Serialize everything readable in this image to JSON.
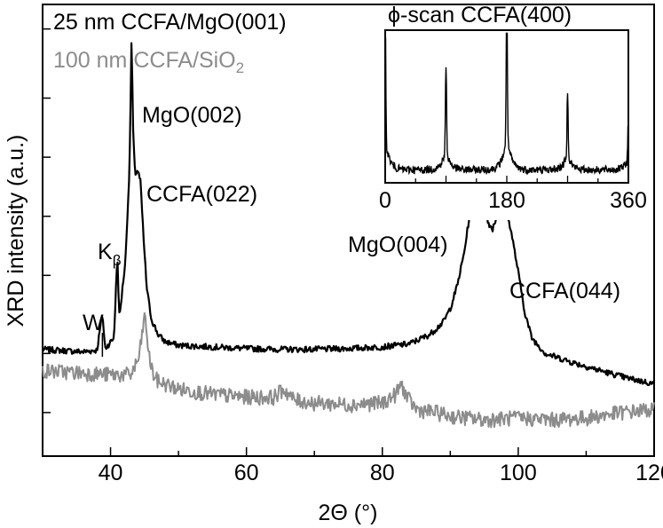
{
  "chart_data": {
    "type": "line",
    "xlabel": "2Θ (°)",
    "ylabel": "XRD intensity (a.u.)",
    "xlim": [
      30,
      120
    ],
    "x_ticks": [
      40,
      60,
      80,
      100,
      120
    ],
    "y_scale": "log",
    "y_tick_labels": "none",
    "grid": false,
    "legend": [
      {
        "label": "25 nm CCFA/MgO(001)",
        "color": "#000000"
      },
      {
        "label": "100 nm CCFA/SiO",
        "sub": "2",
        "color": "#8c8c8c"
      }
    ],
    "series": [
      {
        "name": "25 nm CCFA/MgO(001)",
        "color": "#000000",
        "x": [
          30,
          34,
          36,
          38,
          38.8,
          39.2,
          40.5,
          41.0,
          41.3,
          41.6,
          42.2,
          42.8,
          43.1,
          43.3,
          43.6,
          44.0,
          44.4,
          44.8,
          45.3,
          46,
          47,
          48,
          50,
          55,
          60,
          65,
          70,
          75,
          80,
          84,
          87,
          89,
          90,
          91,
          92,
          93,
          93.8,
          94.4,
          94.8,
          95.1,
          95.5,
          96.2,
          97.0,
          97.8,
          98.8,
          100,
          101,
          102,
          104,
          108,
          112,
          116,
          120
        ],
        "values": [
          1.05,
          1.03,
          1.02,
          1.04,
          1.6,
          1.06,
          1.2,
          3.2,
          1.5,
          1.9,
          3.0,
          9,
          42,
          14,
          8.2,
          8.6,
          7.5,
          4.2,
          2.2,
          1.5,
          1.25,
          1.15,
          1.1,
          1.08,
          1.06,
          1.05,
          1.05,
          1.06,
          1.08,
          1.12,
          1.25,
          1.45,
          1.7,
          2.2,
          3.2,
          5.5,
          9,
          14,
          12.5,
          6.5,
          4.7,
          4.3,
          5.2,
          5.6,
          4.5,
          2.6,
          1.6,
          1.2,
          1.0,
          0.9,
          0.82,
          0.75,
          0.7
        ]
      },
      {
        "name": "100 nm CCFA/SiO2",
        "color": "#8c8c8c",
        "x": [
          30,
          35,
          40,
          43,
          44.2,
          44.7,
          45.0,
          45.3,
          45.7,
          46.3,
          47,
          50,
          55,
          60,
          64,
          65.5,
          67,
          70,
          75,
          80,
          82,
          82.8,
          83.6,
          85,
          88,
          90,
          95,
          100,
          105,
          110,
          115,
          120
        ],
        "values": [
          0.82,
          0.8,
          0.78,
          0.78,
          0.95,
          1.3,
          1.55,
          1.3,
          0.95,
          0.78,
          0.72,
          0.66,
          0.62,
          0.6,
          0.6,
          0.66,
          0.58,
          0.56,
          0.55,
          0.56,
          0.62,
          0.7,
          0.6,
          0.52,
          0.5,
          0.48,
          0.46,
          0.47,
          0.46,
          0.47,
          0.5,
          0.52
        ]
      }
    ],
    "annotations": [
      {
        "text": "MgO(002)",
        "x": 43.1
      },
      {
        "text": "CCFA(022)",
        "x": 44.0
      },
      {
        "text": "K",
        "sub": "β",
        "x": 41.0
      },
      {
        "text": "W",
        "x": 38.8
      },
      {
        "text": "MgO(004)",
        "x": 94.8
      },
      {
        "text": "CCFA(044)",
        "x": 97.8
      }
    ],
    "inset": {
      "type": "line",
      "title": "ϕ-scan CCFA(400)",
      "xlim": [
        0,
        360
      ],
      "x_ticks": [
        0,
        180,
        360
      ],
      "peaks_at": [
        0,
        90,
        180,
        270,
        360
      ],
      "peak_heights": [
        0.85,
        0.55,
        0.95,
        0.42,
        0.3
      ]
    }
  }
}
